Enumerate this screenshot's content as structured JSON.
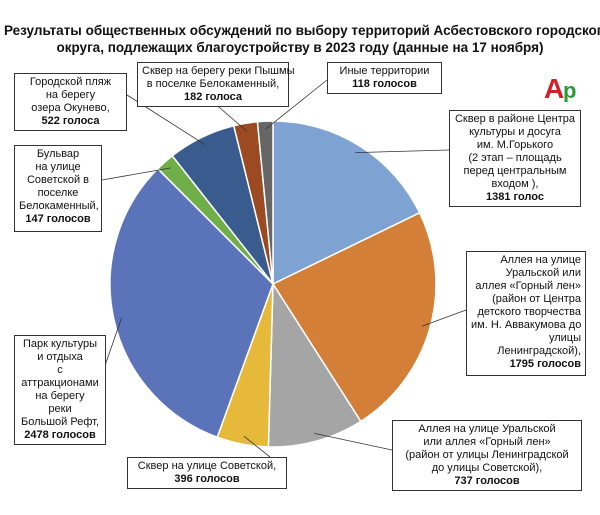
{
  "title_lines": [
    "Результаты общественных обсуждений по выбору территорий Асбестовского городского",
    "округа, подлежащих благоустройству в 2023 году (данные на 17 ноября)"
  ],
  "logo": {
    "text": "Ар",
    "color_a": "#d41f26",
    "color_p": "#2b9a3d"
  },
  "chart_data": {
    "type": "pie",
    "title": "Результаты общественных обсуждений по выбору территорий Асбестовского городского округа, подлежащих благоустройству в 2023 году (данные на 17 ноября)",
    "unit": "голосов",
    "start": "12 o'clock, clockwise",
    "slices": [
      {
        "lines": [
          "Сквер в районе Центра",
          "культуры и досуга",
          "им. М.Горького",
          "(2 этап – площадь",
          "перед центральным",
          "входом ),"
        ],
        "value_text": "1381 голос",
        "value": 1381,
        "color": "#7ea2d2"
      },
      {
        "lines": [
          "Аллея на улице",
          "Уральской  или",
          "аллея «Горный лен»",
          "(район  от Центра",
          "детского творчества",
          "им. Н. Аввакумова до",
          "улицы",
          "Ленинградской),"
        ],
        "value_text": "1795 голосов",
        "value": 1795,
        "color": "#d47f38"
      },
      {
        "lines": [
          "Аллея на улице Уральской",
          "или аллея «Горный лен»",
          "(район от улицы Ленинградской",
          "до улицы Советской),"
        ],
        "value_text": "737 голосов",
        "value": 737,
        "color": "#a5a5a5"
      },
      {
        "lines": [
          "Сквер на улице Советской,"
        ],
        "value_text": "396  голосов",
        "value": 396,
        "color": "#e6b93a"
      },
      {
        "lines": [
          "Парк культуры",
          "и отдыха",
          "с",
          "аттракционами",
          "на берегу",
          "реки",
          "Большой Рефт,"
        ],
        "value_text": "2478  голосов",
        "value": 2478,
        "color": "#5b73b9"
      },
      {
        "lines": [
          "Бульвар",
          "на улице",
          "Советской в",
          "поселке",
          "Белокаменный,"
        ],
        "value_text": "147  голосов",
        "value": 147,
        "color": "#6fae48"
      },
      {
        "lines": [
          "Городской пляж",
          "на берегу",
          "озера Окунево,"
        ],
        "value_text": "522  голоса",
        "value": 522,
        "color": "#3a5b8e"
      },
      {
        "lines": [
          "Сквер на берегу реки Пышмы",
          "в поселке Белокаменный,"
        ],
        "value_text": "182  голоса",
        "value": 182,
        "color": "#9c4a22"
      },
      {
        "lines": [
          "Иные территории"
        ],
        "value_text": "118  голосов",
        "value": 118,
        "color": "#666666"
      }
    ]
  }
}
